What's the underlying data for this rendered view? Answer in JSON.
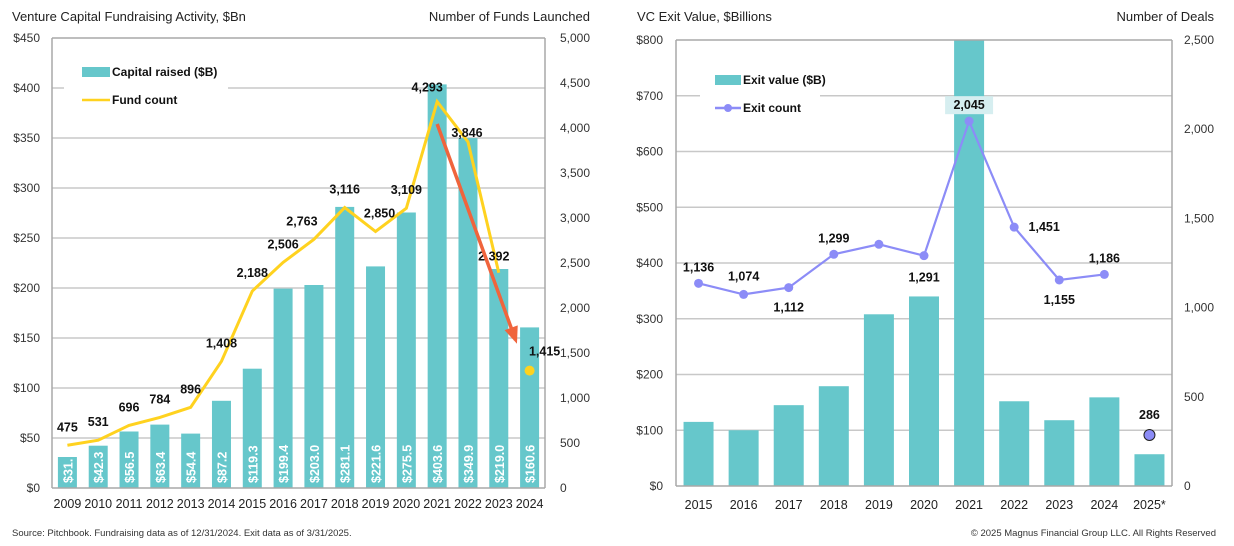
{
  "colors": {
    "bar": "#66C7CB",
    "fund_line": "#FFD21F",
    "exit_line": "#8C8CF7",
    "arrow": "#F0643C",
    "grid": "#c8c8c8",
    "axis": "#a8a8a8"
  },
  "chart_data": [
    {
      "type": "bar+line",
      "title": "Venture Capital Fundraising Activity, $Bn",
      "right_axis_title": "Number of Funds Launched",
      "categories": [
        "2009",
        "2010",
        "2011",
        "2012",
        "2013",
        "2014",
        "2015",
        "2016",
        "2017",
        "2018",
        "2019",
        "2020",
        "2021",
        "2022",
        "2023",
        "2024"
      ],
      "series": [
        {
          "name": "Capital raised ($B)",
          "kind": "bar",
          "axis": "left",
          "values": [
            31.0,
            42.3,
            56.5,
            63.4,
            54.4,
            87.2,
            119.3,
            199.4,
            203.0,
            281.1,
            221.6,
            275.5,
            403.6,
            349.9,
            219.0,
            160.6
          ],
          "labels": [
            "$31.",
            "$42.3",
            "$56.5",
            "$63.4",
            "$54.4",
            "$87.2",
            "$119.3",
            "$199.4",
            "$203.0",
            "$281.1",
            "$221.6",
            "$275.5",
            "$403.6",
            "$349.9",
            "$219.0",
            "$160.6"
          ]
        },
        {
          "name": "Fund count",
          "kind": "line",
          "axis": "right",
          "values": [
            475,
            531,
            696,
            784,
            896,
            1408,
            2188,
            2506,
            2763,
            3116,
            2850,
            3109,
            4293,
            3846,
            2392,
            1415
          ],
          "labels": [
            "475",
            "531",
            "696",
            "784",
            "896",
            "1,408",
            "2,188",
            "2,506",
            "2,763",
            "3,116",
            "2,850",
            "3,109",
            "4,293",
            "3,846",
            "2,392",
            "1,415"
          ],
          "line_ends_at": "2023",
          "last_point_marker_only": true
        }
      ],
      "annotation": {
        "type": "arrow",
        "from": "2021",
        "to": "2024",
        "description": "downtrend arrow"
      },
      "yleft": {
        "ylim": [
          0,
          450
        ],
        "ticks": [
          0,
          50,
          100,
          150,
          200,
          250,
          300,
          350,
          400,
          450
        ],
        "tick_labels": [
          "$0",
          "$50",
          "$100",
          "$150",
          "$200",
          "$250",
          "$300",
          "$350",
          "$400",
          "$450"
        ]
      },
      "yright": {
        "ylim": [
          0,
          5000
        ],
        "ticks": [
          0,
          500,
          1000,
          1500,
          2000,
          2500,
          3000,
          3500,
          4000,
          4500,
          5000
        ],
        "tick_labels": [
          "0",
          "500",
          "1,000",
          "1,500",
          "2,000",
          "2,500",
          "3,000",
          "3,500",
          "4,000",
          "4,500",
          "5,000"
        ]
      },
      "legend": {
        "placement": "top-left",
        "entries": [
          "Capital raised ($B)",
          "Fund count"
        ]
      },
      "grid": true
    },
    {
      "type": "bar+line",
      "title": "VC Exit Value, $Billions",
      "right_axis_title": "Number of Deals",
      "categories": [
        "2015",
        "2016",
        "2017",
        "2018",
        "2019",
        "2020",
        "2021",
        "2022",
        "2023",
        "2024",
        "2025*"
      ],
      "series": [
        {
          "name": "Exit value ($B)",
          "kind": "bar",
          "axis": "left",
          "values": [
            115,
            100,
            145,
            179,
            308,
            340,
            800,
            152,
            118,
            159,
            57
          ]
        },
        {
          "name": "Exit count",
          "kind": "line",
          "axis": "right",
          "values": [
            1136,
            1074,
            1112,
            1299,
            1355,
            1291,
            2045,
            1451,
            1155,
            1186,
            286
          ],
          "labels": [
            "1,136",
            "1,074",
            "1,112",
            "1,299",
            "",
            "1,291",
            "2,045",
            "1,451",
            "1,155",
            "1,186",
            "286"
          ],
          "line_ends_at": "2024",
          "last_point_marker_only": true
        }
      ],
      "yleft": {
        "ylim": [
          0,
          800
        ],
        "ticks": [
          0,
          100,
          200,
          300,
          400,
          500,
          600,
          700,
          800
        ],
        "tick_labels": [
          "$0",
          "$100",
          "$200",
          "$300",
          "$400",
          "$500",
          "$600",
          "$700",
          "$800"
        ]
      },
      "yright": {
        "ylim": [
          0,
          2500
        ],
        "ticks": [
          0,
          500,
          1000,
          1500,
          2000,
          2500
        ],
        "tick_labels": [
          "0",
          "500",
          "1,000",
          "1,500",
          "2,000",
          "2,500"
        ]
      },
      "legend": {
        "placement": "top-left",
        "entries": [
          "Exit value ($B)",
          "Exit count"
        ]
      },
      "grid": true
    }
  ],
  "footer": {
    "source": "Source: Pitchbook. Fundraising data as of 12/31/2024. Exit data as of 3/31/2025.",
    "copyright": "© 2025 Magnus Financial Group LLC. All Rights Reserved"
  }
}
